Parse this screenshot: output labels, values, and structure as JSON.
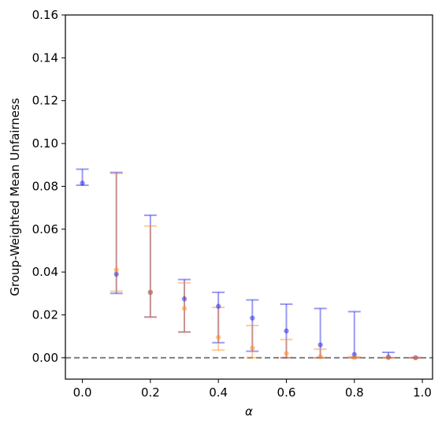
{
  "chart_data": {
    "type": "scatter",
    "xlabel": "α",
    "ylabel": "Group-Weighted Mean Unfairness",
    "xlim": [
      -0.05,
      1.03
    ],
    "ylim": [
      -0.01,
      0.16
    ],
    "xticks": [
      0.0,
      0.2,
      0.4,
      0.6,
      0.8,
      1.0
    ],
    "xtick_labels": [
      "0.0",
      "0.2",
      "0.4",
      "0.6",
      "0.8",
      "1.0"
    ],
    "yticks": [
      0.0,
      0.02,
      0.04,
      0.06,
      0.08,
      0.1,
      0.12,
      0.14,
      0.16
    ],
    "ytick_labels": [
      "0.00",
      "0.02",
      "0.04",
      "0.06",
      "0.08",
      "0.10",
      "0.12",
      "0.14",
      "0.16"
    ],
    "reference_line": {
      "y": 0.0,
      "style": "dashed",
      "color": "#808080"
    },
    "grid": false,
    "legend": "none",
    "series": [
      {
        "color": "#1f1fe6",
        "points": [
          {
            "x": 0.0,
            "y": 0.0815,
            "low": 0.0805,
            "high": 0.088
          },
          {
            "x": 0.1,
            "y": 0.039,
            "low": 0.03,
            "high": 0.0865
          },
          {
            "x": 0.2,
            "y": 0.0305,
            "low": 0.019,
            "high": 0.0665
          },
          {
            "x": 0.3,
            "y": 0.0275,
            "low": 0.012,
            "high": 0.0365
          },
          {
            "x": 0.4,
            "y": 0.024,
            "low": 0.007,
            "high": 0.0305
          },
          {
            "x": 0.5,
            "y": 0.0185,
            "low": 0.003,
            "high": 0.027
          },
          {
            "x": 0.6,
            "y": 0.0125,
            "low": 0.0,
            "high": 0.025
          },
          {
            "x": 0.7,
            "y": 0.006,
            "low": 0.0,
            "high": 0.023
          },
          {
            "x": 0.8,
            "y": 0.0015,
            "low": 0.0,
            "high": 0.0215
          },
          {
            "x": 0.9,
            "y": 0.0003,
            "low": 0.0,
            "high": 0.0025
          },
          {
            "x": 0.98,
            "y": 0.0,
            "low": 0.0,
            "high": 0.0
          }
        ]
      },
      {
        "color": "#ff8c1a",
        "points": [
          {
            "x": 0.1,
            "y": 0.041,
            "low": 0.031,
            "high": 0.086
          },
          {
            "x": 0.2,
            "y": 0.0305,
            "low": 0.019,
            "high": 0.0615
          },
          {
            "x": 0.3,
            "y": 0.023,
            "low": 0.012,
            "high": 0.035
          },
          {
            "x": 0.4,
            "y": 0.0095,
            "low": 0.0035,
            "high": 0.0235
          },
          {
            "x": 0.5,
            "y": 0.0045,
            "low": 0.0,
            "high": 0.015
          },
          {
            "x": 0.6,
            "y": 0.002,
            "low": 0.0,
            "high": 0.0085
          },
          {
            "x": 0.7,
            "y": 0.0005,
            "low": 0.0,
            "high": 0.004
          },
          {
            "x": 0.8,
            "y": 0.0,
            "low": 0.0,
            "high": 0.0005
          },
          {
            "x": 0.9,
            "y": 0.0,
            "low": 0.0,
            "high": 0.0
          },
          {
            "x": 0.98,
            "y": 0.0,
            "low": 0.0,
            "high": 0.0
          }
        ]
      }
    ]
  }
}
